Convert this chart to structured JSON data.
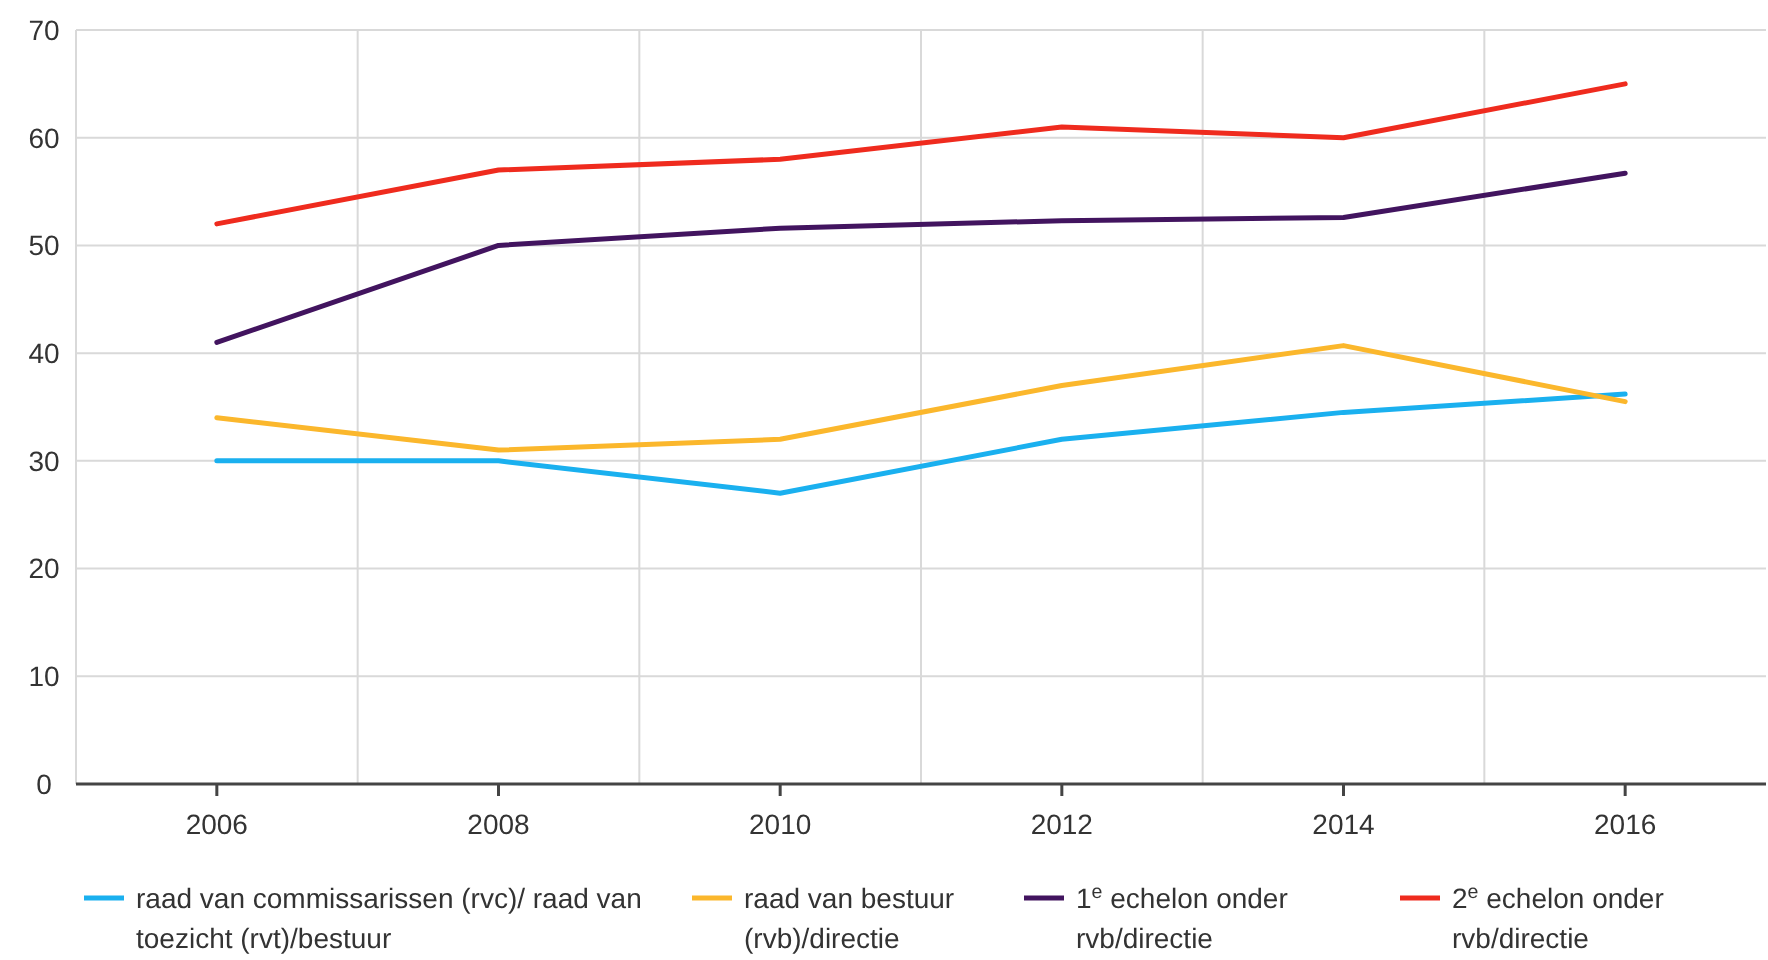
{
  "chart_data": {
    "type": "line",
    "x": [
      2006,
      2008,
      2010,
      2012,
      2014,
      2016
    ],
    "series": [
      {
        "name": "raad van commissarissen (rvc)/ raad van toezicht (rvt)/bestuur",
        "color": "#1ab0ef",
        "values": [
          30,
          30,
          27,
          32,
          34.5,
          36.2
        ]
      },
      {
        "name": "raad van bestuur (rvb)/directie",
        "color": "#fbb72c",
        "values": [
          34,
          31,
          32,
          37,
          40.7,
          35.5
        ]
      },
      {
        "name": "1$^{e}$ echelon onder rvb/directie",
        "color": "#42145f",
        "values": [
          41,
          50,
          51.6,
          52.3,
          52.6,
          56.7
        ]
      },
      {
        "name": "2$^{e}$ echelon onder rvb/directie",
        "color": "#ef2b1e",
        "values": [
          52,
          57,
          58,
          61,
          60,
          65
        ]
      }
    ],
    "xlim": [
      2005,
      2017
    ],
    "xticks": [
      2006,
      {
        "value": 2007,
        "label": null
      },
      2008,
      {
        "value": 2009,
        "label": null
      },
      2010,
      {
        "value": 2011,
        "label": null
      },
      2012,
      {
        "value": 2013,
        "label": null
      },
      2014,
      {
        "value": 2015,
        "label": null
      },
      2016
    ],
    "ylim": [
      0,
      70
    ],
    "yticks": [
      0,
      10,
      20,
      30,
      40,
      50,
      60,
      70
    ],
    "grid": true,
    "legend": "bottom",
    "marker": "none",
    "line_style": "solid"
  }
}
